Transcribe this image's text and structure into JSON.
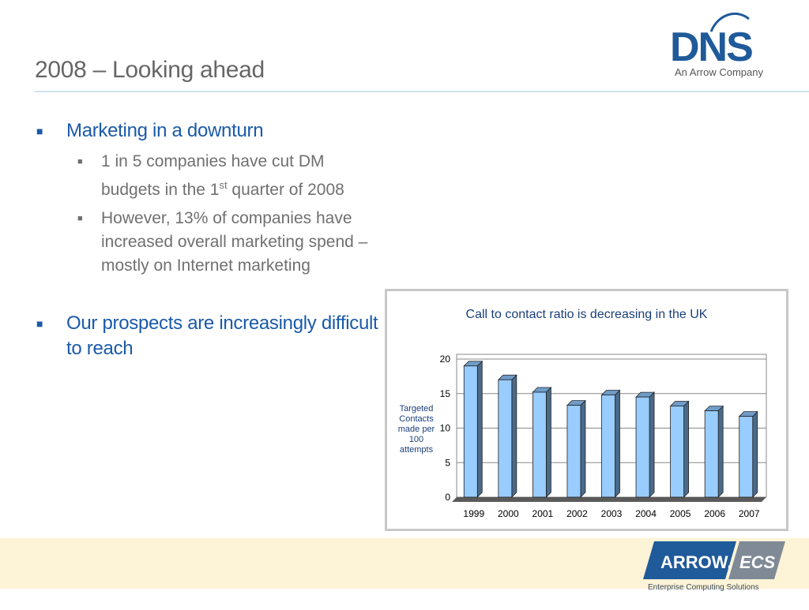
{
  "slide": {
    "title": "2008 – Looking ahead",
    "logo_word": "DNS",
    "logo_tagline": "An Arrow Company",
    "footer_logo_word_left": "ARROW.",
    "footer_logo_word_right": "ECS",
    "footer_logo_tagline": "Enterprise Computing Solutions"
  },
  "bullets": [
    {
      "text": "Marketing in a downturn",
      "sub": [
        {
          "pre": "1 in 5 companies have cut DM budgets in the 1",
          "sup": "st",
          "post": " quarter of 2008"
        },
        {
          "pre": "However, 13% of companies have increased overall marketing spend – mostly on Internet marketing",
          "sup": "",
          "post": ""
        }
      ]
    },
    {
      "text": "Our prospects are increasingly difficult to reach",
      "sub": []
    }
  ],
  "colors": {
    "title": "#666666",
    "bullet_primary": "#1a5aa8",
    "bullet_secondary": "#707070",
    "bar_front": "#99ccff",
    "bar_side": "#4a6a8a",
    "footer_band": "#fdf3d6"
  },
  "chart_data": {
    "type": "bar",
    "title": "Call to contact ratio is decreasing in the UK",
    "ylabel": "Targeted Contacts made per 100 attempts",
    "xlabel": "",
    "categories": [
      "1999",
      "2000",
      "2001",
      "2002",
      "2003",
      "2004",
      "2005",
      "2006",
      "2007"
    ],
    "values": [
      19,
      17,
      15.2,
      13.3,
      14.8,
      14.5,
      13.2,
      12.5,
      11.7
    ],
    "ylim": [
      0,
      20
    ],
    "yticks": [
      0,
      5,
      10,
      15,
      20
    ],
    "grid": true,
    "style": "3d-bar"
  }
}
